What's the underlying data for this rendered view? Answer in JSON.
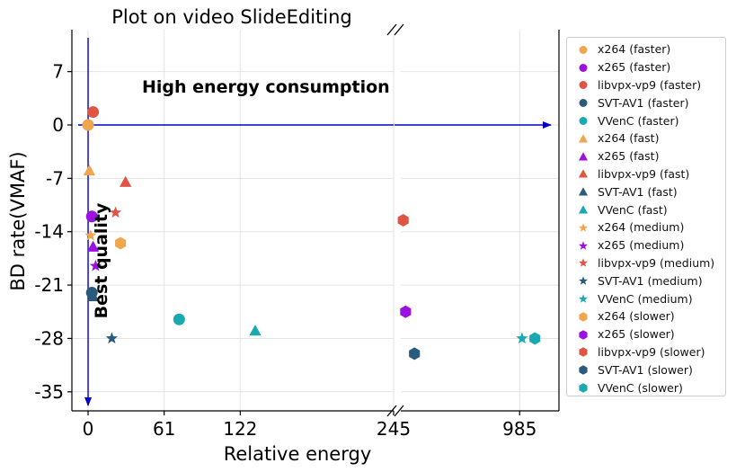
{
  "chart_data": {
    "type": "scatter",
    "title": "Plot on video SlideEditing",
    "xlabel": "Relative energy",
    "ylabel": "BD rate(VMAF)",
    "broken_x_axis": true,
    "x_ticks_left": [
      0,
      61,
      122,
      245
    ],
    "x_ticks_right": [
      985
    ],
    "y_ticks": [
      7,
      0,
      -7,
      -14,
      -21,
      -28,
      -35
    ],
    "xlim_left": [
      -13,
      245
    ],
    "xlim_right": [
      245,
      1230
    ],
    "ylim": [
      -37.5,
      12.5
    ],
    "grid": true,
    "legend_placement": "right",
    "annotations": {
      "top": "High energy consumption",
      "left": "Best quality"
    },
    "colors": {
      "x264": "#f0a64e",
      "x265": "#9b11df",
      "libvpx-vp9": "#e05444",
      "SVT-AV1": "#2a5a7c",
      "VVenC": "#1aa9b0",
      "axis_lines": "#0000cc"
    },
    "series": [
      {
        "name": "x264 (faster)",
        "codec": "x264",
        "marker": "circle",
        "x": 0,
        "y": 0
      },
      {
        "name": "x265 (faster)",
        "codec": "x265",
        "marker": "circle",
        "x": 3,
        "y": -12
      },
      {
        "name": "libvpx-vp9 (faster)",
        "codec": "libvpx-vp9",
        "marker": "circle",
        "x": 4,
        "y": 1.7
      },
      {
        "name": "SVT-AV1 (faster)",
        "codec": "SVT-AV1",
        "marker": "circle",
        "x": 3,
        "y": -22
      },
      {
        "name": "VVenC (faster)",
        "codec": "VVenC",
        "marker": "circle",
        "x": 73,
        "y": -25.5
      },
      {
        "name": "x264 (fast)",
        "codec": "x264",
        "marker": "triangle",
        "x": 1,
        "y": -6
      },
      {
        "name": "x265 (fast)",
        "codec": "x265",
        "marker": "triangle",
        "x": 4,
        "y": -16
      },
      {
        "name": "libvpx-vp9 (fast)",
        "codec": "libvpx-vp9",
        "marker": "triangle",
        "x": 30,
        "y": -7.5
      },
      {
        "name": "SVT-AV1 (fast)",
        "codec": "SVT-AV1",
        "marker": "triangle",
        "x": 4,
        "y": -22.5
      },
      {
        "name": "VVenC (fast)",
        "codec": "VVenC",
        "marker": "triangle",
        "x": 134,
        "y": -27
      },
      {
        "name": "x264 (medium)",
        "codec": "x264",
        "marker": "star",
        "x": 2,
        "y": -14.5
      },
      {
        "name": "x265 (medium)",
        "codec": "x265",
        "marker": "star",
        "x": 6,
        "y": -18.5
      },
      {
        "name": "libvpx-vp9 (medium)",
        "codec": "libvpx-vp9",
        "marker": "star",
        "x": 22,
        "y": -11.5
      },
      {
        "name": "SVT-AV1 (medium)",
        "codec": "SVT-AV1",
        "marker": "star",
        "x": 19,
        "y": -28
      },
      {
        "name": "VVenC (medium)",
        "codec": "VVenC",
        "marker": "star",
        "x": 1000,
        "y": -28
      },
      {
        "name": "x264 (slower)",
        "codec": "x264",
        "marker": "hexagon",
        "x": 26,
        "y": -15.5
      },
      {
        "name": "x265 (slower)",
        "codec": "x265",
        "marker": "hexagon",
        "x": 275,
        "y": -24.5
      },
      {
        "name": "libvpx-vp9 (slower)",
        "codec": "libvpx-vp9",
        "marker": "hexagon",
        "x": 260,
        "y": -12.5
      },
      {
        "name": "SVT-AV1 (slower)",
        "codec": "SVT-AV1",
        "marker": "hexagon",
        "x": 330,
        "y": -30
      },
      {
        "name": "VVenC (slower)",
        "codec": "VVenC",
        "marker": "hexagon",
        "x": 1080,
        "y": -28
      }
    ]
  }
}
